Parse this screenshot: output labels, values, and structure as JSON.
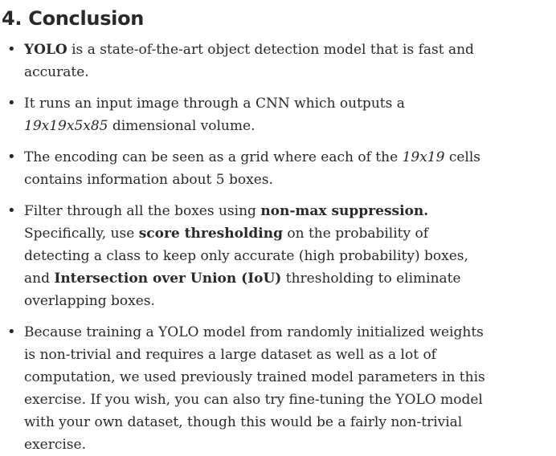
{
  "heading": "4. Conclusion",
  "items": [
    {
      "parts": [
        {
          "t": "YOLO",
          "s": "b"
        },
        {
          "t": " is a state-of-the-art object detection model that is fast and accurate.",
          "s": ""
        }
      ]
    },
    {
      "parts": [
        {
          "t": "It runs an input image through a CNN which outputs a ",
          "s": ""
        },
        {
          "t": "19x19x5x85",
          "s": "i"
        },
        {
          "t": " dimensional volume.",
          "s": ""
        }
      ]
    },
    {
      "parts": [
        {
          "t": "The encoding can be seen as a grid where each of the ",
          "s": ""
        },
        {
          "t": "19x19",
          "s": "i"
        },
        {
          "t": " cells contains information about 5 boxes.",
          "s": ""
        }
      ]
    },
    {
      "parts": [
        {
          "t": "Filter through all the boxes using ",
          "s": ""
        },
        {
          "t": "non-max suppression.",
          "s": "b"
        },
        {
          "t": " Specifically, use ",
          "s": ""
        },
        {
          "t": "score thresholding",
          "s": "b"
        },
        {
          "t": " on the probability of detecting a class to keep only accurate (high probability) boxes, and ",
          "s": ""
        },
        {
          "t": "Intersection over Union (IoU)",
          "s": "b"
        },
        {
          "t": " thresholding to eliminate overlapping boxes.",
          "s": ""
        }
      ]
    },
    {
      "parts": [
        {
          "t": "Because training a YOLO model from randomly initialized weights is non-trivial and requires a large dataset as well as a lot of computation, we used previously trained model parameters in this exercise. If you wish, you can also try fine-tuning the YOLO model with your own dataset, though this would be a fairly non-trivial exercise.",
          "s": ""
        }
      ]
    }
  ]
}
